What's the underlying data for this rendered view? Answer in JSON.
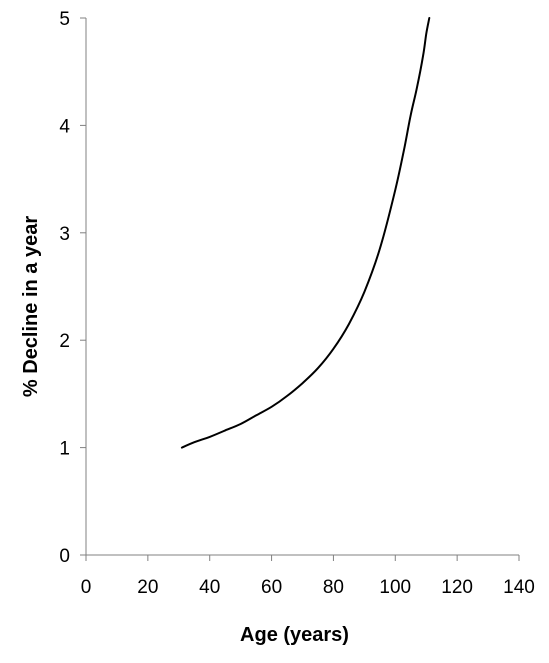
{
  "chart_data": {
    "type": "line",
    "title": "",
    "xlabel": "Age (years)",
    "ylabel": "% Decline in a year",
    "xlim": [
      0,
      140
    ],
    "ylim": [
      0,
      5
    ],
    "x_ticks": [
      "0",
      "20",
      "40",
      "60",
      "80",
      "100",
      "120",
      "140"
    ],
    "y_ticks": [
      "0",
      "1",
      "2",
      "3",
      "4",
      "5"
    ],
    "grid": false,
    "legend": "none",
    "line_color": "#000000",
    "series": [
      {
        "x": [
          31,
          35,
          40,
          45,
          50,
          55,
          60,
          65,
          70,
          75,
          80,
          85,
          90,
          95,
          100,
          103,
          105,
          107,
          109,
          110,
          111
        ],
        "y": [
          1.0,
          1.05,
          1.1,
          1.16,
          1.22,
          1.3,
          1.38,
          1.48,
          1.6,
          1.74,
          1.92,
          2.15,
          2.45,
          2.85,
          3.4,
          3.8,
          4.1,
          4.35,
          4.65,
          4.85,
          5.0
        ]
      }
    ]
  }
}
